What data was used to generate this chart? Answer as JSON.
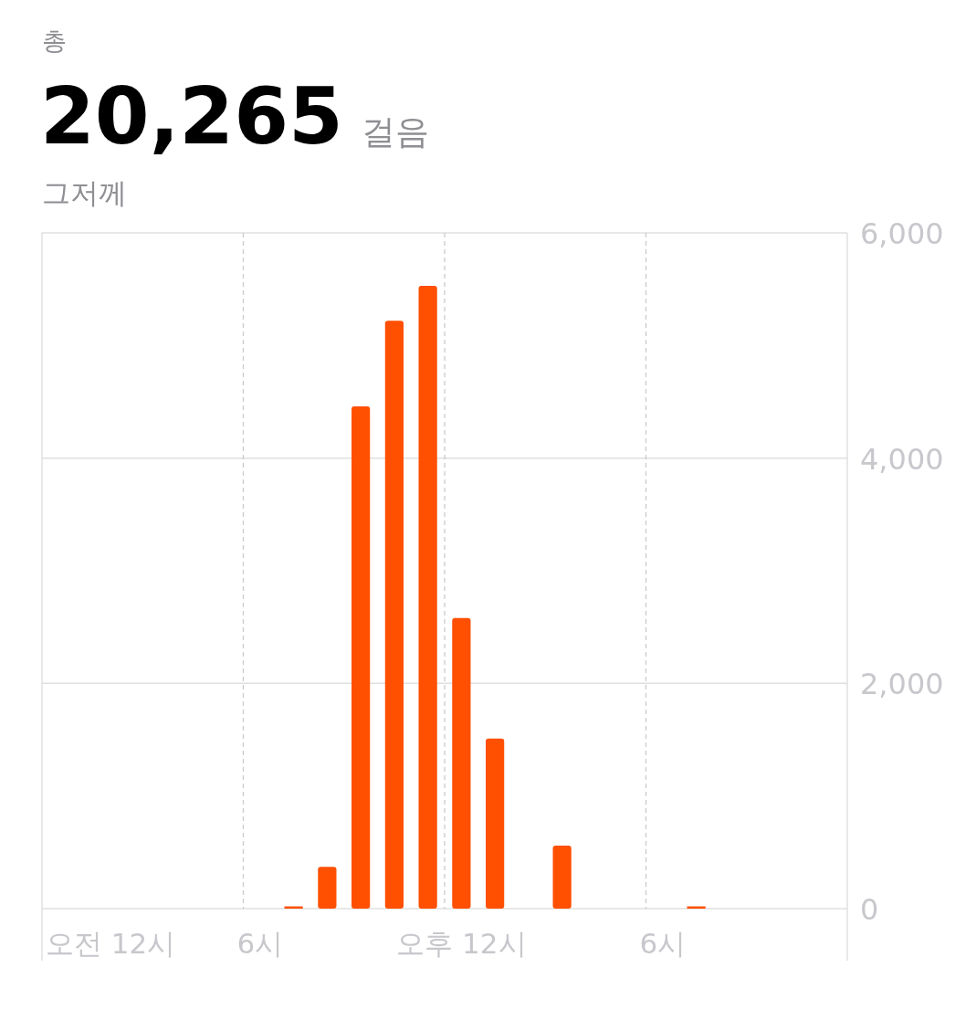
{
  "chart_data": {
    "type": "bar",
    "title": "20,265",
    "subtitle": "그저께",
    "annotations": [
      "총",
      "걸음"
    ],
    "categories": [
      "오전 12시",
      null,
      null,
      null,
      null,
      null,
      "6시",
      null,
      null,
      null,
      null,
      null,
      "오후 12시",
      null,
      null,
      null,
      null,
      null,
      "6시",
      null,
      null,
      null,
      null,
      null
    ],
    "values": [
      0,
      0,
      0,
      0,
      0,
      0,
      0,
      20,
      370,
      4460,
      5220,
      5530,
      2580,
      1510,
      0,
      560,
      0,
      0,
      0,
      20,
      0,
      0,
      0,
      0
    ],
    "color": "#ff4f00",
    "ylim": [
      0,
      6000
    ],
    "yticks": [
      0,
      {
        "value": 2000,
        "label": "2,000"
      },
      {
        "value": 4000,
        "label": "4,000"
      },
      {
        "value": 6000,
        "label": "6,000"
      }
    ],
    "grid": true
  }
}
